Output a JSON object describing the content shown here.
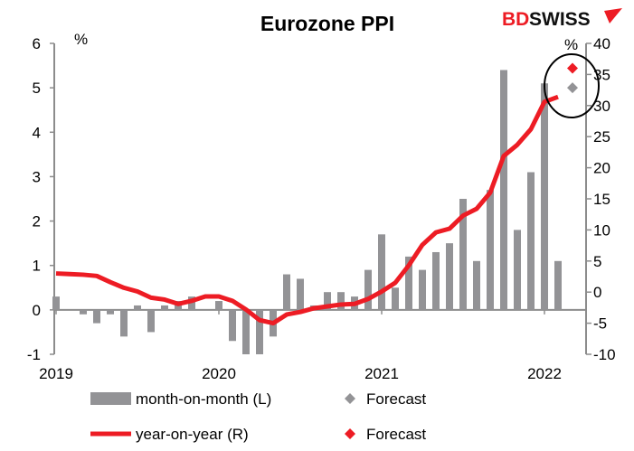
{
  "logo": {
    "part1": "BD",
    "part2": "SWISS"
  },
  "chart_data": {
    "type": "bar+line",
    "title": "Eurozone PPI",
    "left_unit": "%",
    "right_unit": "%",
    "left_axis": {
      "ylim": [
        -1,
        6
      ],
      "ticks": [
        "6",
        "5",
        "4",
        "3",
        "2",
        "1",
        "0",
        "-1"
      ]
    },
    "right_axis": {
      "ylim": [
        -10,
        40
      ],
      "ticks": [
        "40",
        "35",
        "30",
        "25",
        "20",
        "15",
        "10",
        "5",
        "0",
        "-5",
        "-10"
      ]
    },
    "x_ticks": [
      "2019",
      "2020",
      "2021",
      "2022"
    ],
    "x_start": "2019-01",
    "grid": false,
    "series": [
      {
        "name": "month-on-month (L)",
        "type": "bar",
        "axis": "left",
        "color": "#939396",
        "values": [
          0.3,
          0.0,
          -0.1,
          -0.3,
          -0.1,
          -0.6,
          0.1,
          -0.5,
          0.1,
          0.2,
          0.3,
          0.0,
          0.2,
          -0.7,
          -1.0,
          -1.0,
          -0.6,
          0.8,
          0.7,
          0.1,
          0.4,
          0.4,
          0.3,
          0.9,
          1.7,
          0.5,
          1.2,
          0.9,
          1.3,
          1.5,
          2.5,
          1.1,
          2.7,
          5.4,
          1.8,
          3.1,
          5.1,
          1.1
        ]
      },
      {
        "name": "year-on-year (R)",
        "type": "line",
        "axis": "right",
        "color": "#ed1c24",
        "values": [
          3.0,
          2.9,
          2.8,
          2.6,
          1.6,
          0.7,
          0.1,
          -0.9,
          -1.2,
          -1.9,
          -1.4,
          -0.7,
          -0.7,
          -1.4,
          -2.8,
          -4.5,
          -5.0,
          -3.6,
          -3.2,
          -2.6,
          -2.3,
          -2.0,
          -1.9,
          -1.1,
          0.1,
          1.5,
          4.3,
          7.6,
          9.6,
          10.2,
          12.3,
          13.4,
          16.0,
          21.9,
          23.7,
          26.2,
          30.6,
          31.4
        ]
      }
    ],
    "forecasts": [
      {
        "name": "Forecast",
        "of": "month-on-month (L)",
        "period": "2022-03",
        "value": 5.0,
        "color": "#939396"
      },
      {
        "name": "Forecast",
        "of": "year-on-year (R)",
        "period": "2022-03",
        "value": 36.0,
        "color": "#ed1c24"
      }
    ]
  }
}
